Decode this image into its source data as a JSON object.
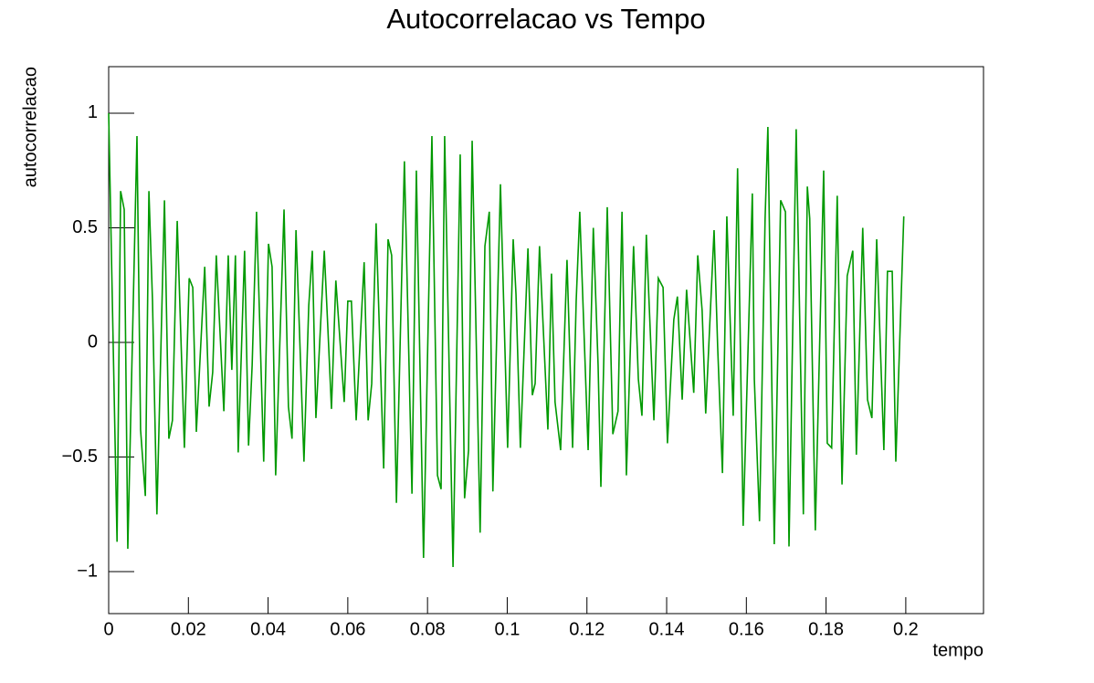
{
  "chart_data": {
    "type": "line",
    "title": "Autocorrelacao vs Tempo",
    "x_label": "tempo",
    "y_label": "autocorrelacao",
    "xlim": [
      0,
      0.2195
    ],
    "ylim": [
      -1.183,
      1.203
    ],
    "xticks": [
      0,
      0.02,
      0.04,
      0.06,
      0.08,
      0.1,
      0.12,
      0.14,
      0.16,
      0.18,
      0.2
    ],
    "yticks": [
      {
        "value": -1,
        "label": "−1"
      },
      {
        "value": -0.5,
        "label": "−0.5"
      },
      0,
      0.5,
      1
    ],
    "series": [
      {
        "name": "autocorrelacao",
        "color": "#009900",
        "x": [
          0,
          0.0021,
          0.003,
          0.0039,
          0.0048,
          0.0071,
          0.008,
          0.0092,
          0.0101,
          0.011,
          0.0121,
          0.014,
          0.0151,
          0.016,
          0.0172,
          0.019,
          0.0202,
          0.0211,
          0.022,
          0.0241,
          0.0252,
          0.0261,
          0.027,
          0.0289,
          0.03,
          0.0309,
          0.0318,
          0.0325,
          0.0341,
          0.0351,
          0.036,
          0.0371,
          0.0389,
          0.0401,
          0.041,
          0.0419,
          0.044,
          0.0451,
          0.046,
          0.047,
          0.049,
          0.0502,
          0.0511,
          0.052,
          0.0541,
          0.055,
          0.0559,
          0.057,
          0.0591,
          0.06,
          0.0609,
          0.0621,
          0.0641,
          0.0651,
          0.066,
          0.0671,
          0.069,
          0.0701,
          0.071,
          0.0722,
          0.0742,
          0.0761,
          0.0772,
          0.079,
          0.0811,
          0.0825,
          0.0834,
          0.0843,
          0.0864,
          0.0882,
          0.0893,
          0.0903,
          0.0912,
          0.0932,
          0.0944,
          0.0955,
          0.0964,
          0.0983,
          0.1001,
          0.1015,
          0.1022,
          0.1033,
          0.1052,
          0.1063,
          0.107,
          0.1081,
          0.1102,
          0.1111,
          0.112,
          0.1134,
          0.115,
          0.1164,
          0.1173,
          0.1182,
          0.1203,
          0.1216,
          0.1228,
          0.1235,
          0.1251,
          0.1265,
          0.1278,
          0.1288,
          0.1299,
          0.1317,
          0.1329,
          0.1338,
          0.1349,
          0.1368,
          0.1379,
          0.1391,
          0.1402,
          0.1418,
          0.1427,
          0.1439,
          0.145,
          0.1468,
          0.1478,
          0.1489,
          0.1498,
          0.1519,
          0.1528,
          0.154,
          0.1551,
          0.1567,
          0.1578,
          0.1592,
          0.1615,
          0.162,
          0.1633,
          0.1647,
          0.1654,
          0.167,
          0.1686,
          0.1698,
          0.1707,
          0.1725,
          0.1743,
          0.1753,
          0.1759,
          0.1773,
          0.1794,
          0.1803,
          0.1814,
          0.1828,
          0.184,
          0.1853,
          0.1867,
          0.1876,
          0.1892,
          0.1904,
          0.1915,
          0.1927,
          0.1945,
          0.1954,
          0.1966,
          0.1975,
          0.1995
        ],
        "values": [
          1.0,
          -0.87,
          0.66,
          0.58,
          -0.9,
          0.9,
          -0.38,
          -0.67,
          0.66,
          0.18,
          -0.75,
          0.62,
          -0.42,
          -0.34,
          0.53,
          -0.46,
          0.28,
          0.24,
          -0.39,
          0.33,
          -0.28,
          -0.13,
          0.38,
          -0.3,
          0.38,
          -0.12,
          0.38,
          -0.48,
          0.4,
          -0.45,
          -0.1,
          0.57,
          -0.52,
          0.43,
          0.33,
          -0.58,
          0.58,
          -0.28,
          -0.42,
          0.49,
          -0.52,
          0.16,
          0.4,
          -0.33,
          0.4,
          0.06,
          -0.29,
          0.27,
          -0.26,
          0.18,
          0.18,
          -0.34,
          0.35,
          -0.34,
          -0.18,
          0.52,
          -0.55,
          0.45,
          0.38,
          -0.7,
          0.79,
          -0.66,
          0.75,
          -0.94,
          0.9,
          -0.58,
          -0.64,
          0.9,
          -0.98,
          0.82,
          -0.68,
          -0.47,
          0.88,
          -0.83,
          0.42,
          0.57,
          -0.65,
          0.69,
          -0.46,
          0.45,
          0.21,
          -0.46,
          0.41,
          -0.23,
          -0.18,
          0.42,
          -0.38,
          0.3,
          -0.26,
          -0.47,
          0.36,
          -0.46,
          0.18,
          0.57,
          -0.47,
          0.5,
          -0.1,
          -0.63,
          0.59,
          -0.4,
          -0.3,
          0.57,
          -0.58,
          0.42,
          -0.16,
          -0.32,
          0.47,
          -0.34,
          0.28,
          0.24,
          -0.44,
          0.1,
          0.2,
          -0.25,
          0.23,
          -0.22,
          0.38,
          0.14,
          -0.31,
          0.49,
          -0.02,
          -0.57,
          0.55,
          -0.32,
          0.76,
          -0.8,
          0.65,
          -0.16,
          -0.78,
          0.54,
          0.94,
          -0.88,
          0.62,
          0.57,
          -0.89,
          0.93,
          -0.75,
          0.68,
          0.54,
          -0.82,
          0.75,
          -0.44,
          -0.46,
          0.64,
          -0.62,
          0.29,
          0.4,
          -0.49,
          0.5,
          -0.25,
          -0.33,
          0.45,
          -0.47,
          0.31,
          0.31,
          -0.52,
          0.55
        ]
      }
    ]
  }
}
